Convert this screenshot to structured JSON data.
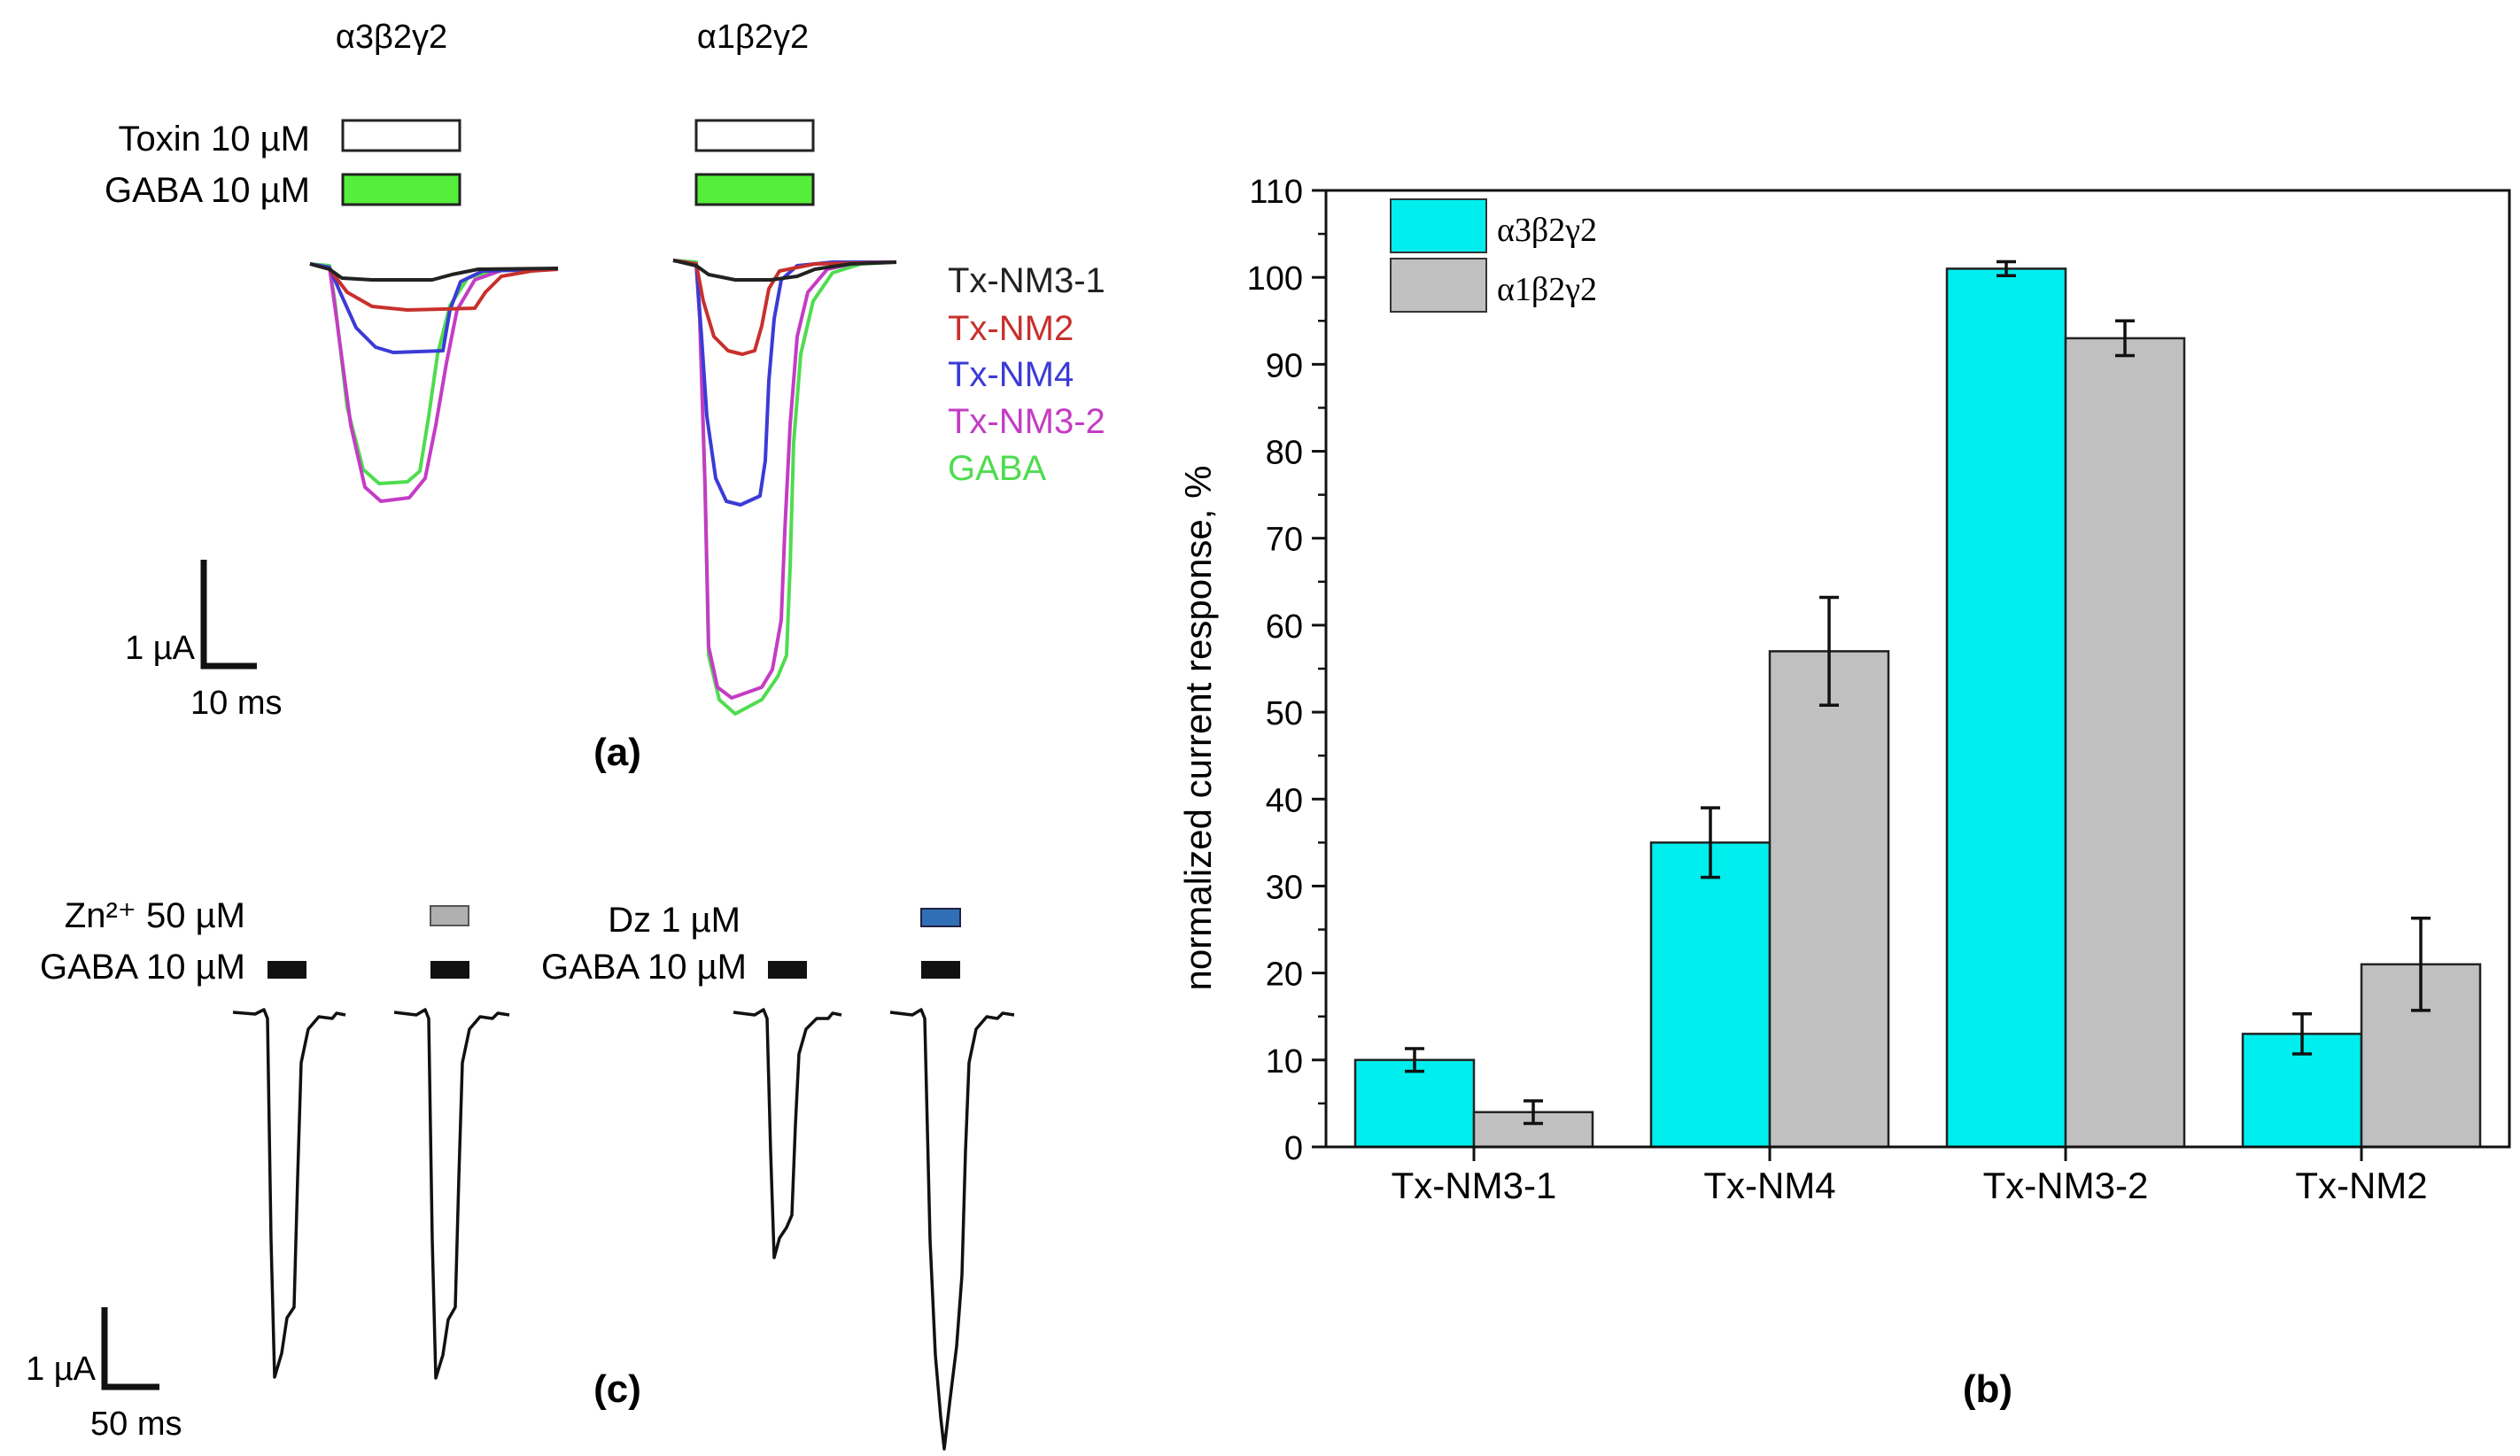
{
  "panel_a": {
    "label": "(a)",
    "receptor_left": "α3β2γ2",
    "receptor_right": "α1β2γ2",
    "toxin_label": "Toxin 10 µM",
    "gaba_label": "GABA 10 µM",
    "legend": [
      {
        "name": "Tx-NM3-1",
        "color": "#222222"
      },
      {
        "name": "Tx-NM2",
        "color": "#c8302c"
      },
      {
        "name": "Tx-NM4",
        "color": "#3b3bd6"
      },
      {
        "name": "Tx-NM3-2",
        "color": "#c43cc4"
      },
      {
        "name": "GABA",
        "color": "#4fdc4f"
      }
    ],
    "scale_y": "1 µA",
    "scale_x": "10 ms",
    "gaba_bar_color": "#55ee3a"
  },
  "panel_c": {
    "label": "(c)",
    "zn_label": "Zn²⁺ 50 µM",
    "gaba_label_1": "GABA 10 µM",
    "dz_label": "Dz 1 µM",
    "gaba_label_2": "GABA 10 µM",
    "scale_y": "1 µA",
    "scale_x": "50 ms",
    "zn_color": "#b0b0b0",
    "dz_color": "#2f6fb5"
  },
  "chart_data": {
    "type": "bar",
    "panel_label": "(b)",
    "categories": [
      "Tx-NM3-1",
      "Tx-NM4",
      "Tx-NM3-2",
      "Tx-NM2"
    ],
    "series": [
      {
        "name": "α3β2γ2",
        "color": "#00eeee",
        "values": [
          10,
          35,
          101,
          13
        ],
        "errors": [
          1.3,
          4,
          0.8,
          2.3
        ]
      },
      {
        "name": "α1β2γ2",
        "color": "#c0c0c0",
        "values": [
          4,
          57,
          93,
          21
        ],
        "errors": [
          1.3,
          6.2,
          2,
          5.3
        ]
      }
    ],
    "ylabel": "normalized current response, %",
    "xlabel": "",
    "ylim": [
      0,
      110
    ],
    "yticks": [
      "0",
      "10",
      "20",
      "30",
      "40",
      "50",
      "60",
      "70",
      "80",
      "90",
      "100",
      "110"
    ],
    "legend_position": "top-left"
  }
}
